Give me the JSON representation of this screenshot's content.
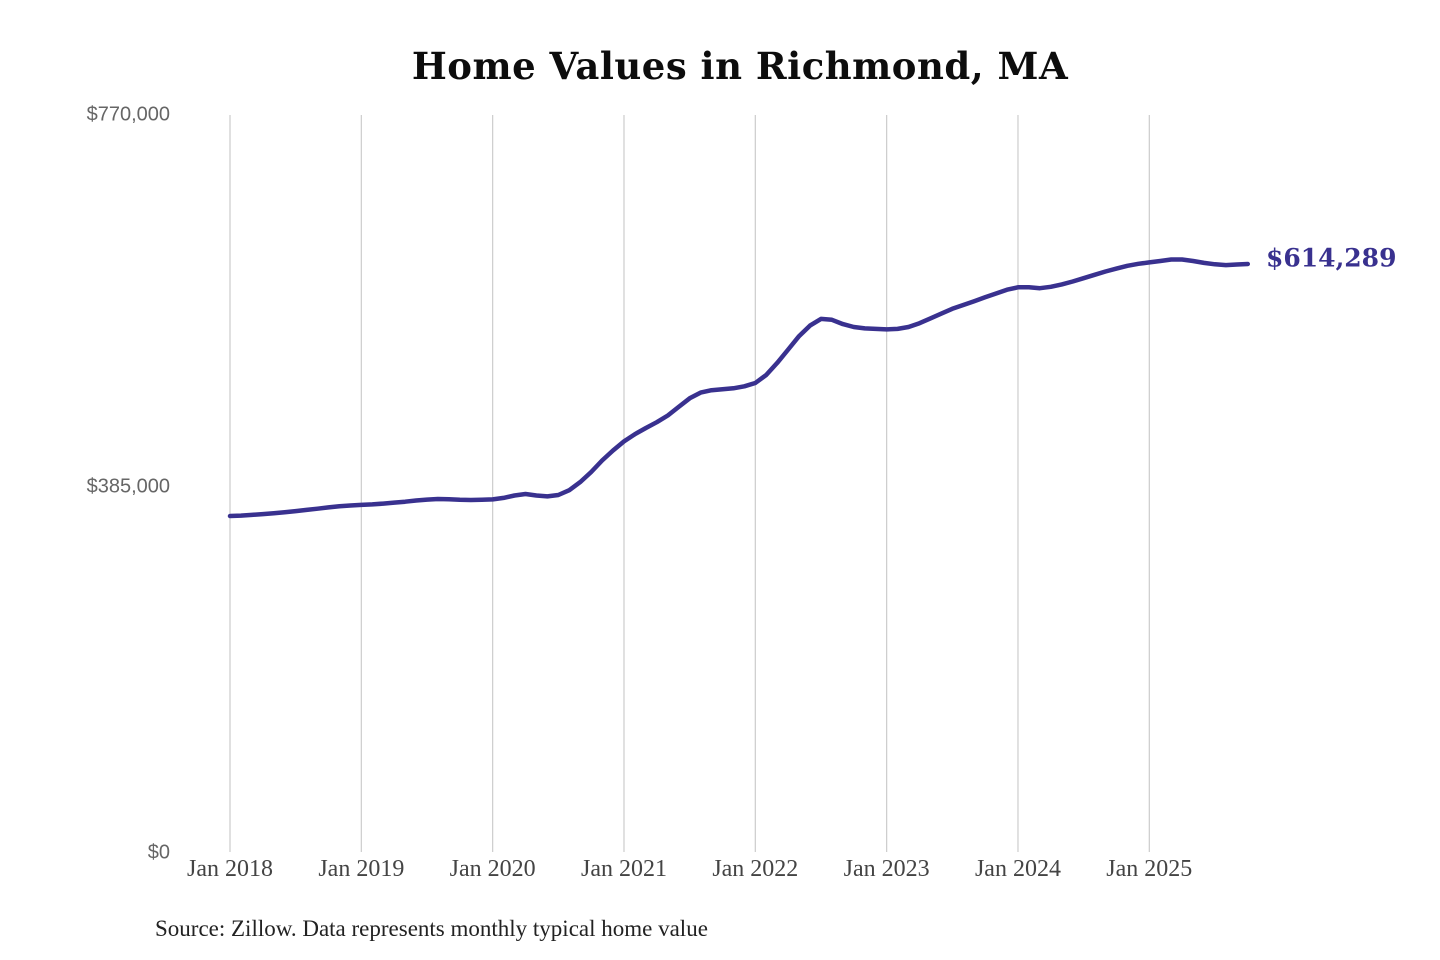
{
  "title": "Home Values in Richmond, MA",
  "source_note": "Source: Zillow. Data represents monthly typical home value",
  "chart_data": {
    "type": "line",
    "title": "Home Values in Richmond, MA",
    "xlabel": "",
    "ylabel": "",
    "x_range": {
      "start": "Jan 2018",
      "end": "Oct 2025",
      "interval": "monthly"
    },
    "x_tick_labels": [
      "Jan 2018",
      "Jan 2019",
      "Jan 2020",
      "Jan 2021",
      "Jan 2022",
      "Jan 2023",
      "Jan 2024",
      "Jan 2025"
    ],
    "y_tick_labels": [
      "$0",
      "$385,000",
      "$770,000"
    ],
    "ylim": [
      0,
      770000
    ],
    "grid": "vertical-only",
    "legend": "none",
    "line_color": "#39318f",
    "grid_color": "#cccccc",
    "end_label": "$614,289",
    "end_value": 614289,
    "series": [
      {
        "name": "Typical home value",
        "values": [
          351000,
          351500,
          352200,
          353000,
          354000,
          355000,
          356200,
          357400,
          358700,
          360000,
          361200,
          362000,
          362600,
          363200,
          364000,
          365000,
          366000,
          367200,
          368200,
          368800,
          368600,
          368000,
          367800,
          368000,
          368400,
          370000,
          372500,
          374000,
          372500,
          371500,
          373000,
          378000,
          386500,
          397000,
          409000,
          419500,
          429000,
          436500,
          443000,
          449000,
          456000,
          465000,
          474000,
          480000,
          482500,
          483500,
          484500,
          486500,
          490000,
          498500,
          511000,
          525000,
          539000,
          550000,
          557000,
          556000,
          551500,
          548500,
          547000,
          546500,
          546000,
          546500,
          548500,
          552500,
          557500,
          562500,
          567500,
          571500,
          575500,
          579500,
          583500,
          587500,
          590000,
          590000,
          589000,
          590500,
          593000,
          596000,
          599500,
          603000,
          606500,
          609500,
          612500,
          614500,
          616000,
          617500,
          619000,
          619000,
          617500,
          615500,
          614000,
          613200,
          613800,
          614289
        ]
      }
    ]
  }
}
